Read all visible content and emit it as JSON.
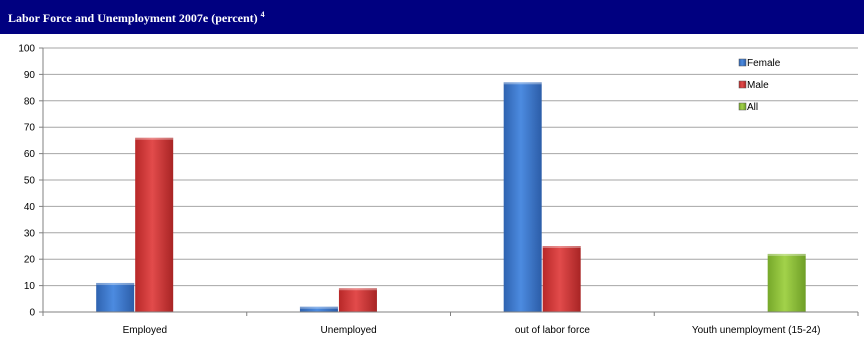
{
  "header": {
    "title": "Labor Force and Unemployment  2007e (percent)",
    "footnote": "4"
  },
  "colors": {
    "banner": "#000080",
    "female": "#3A7BD5",
    "male": "#D93A3A",
    "all": "#8DBE3A"
  },
  "chart_data": {
    "type": "bar",
    "title": "Labor Force and Unemployment  2007e (percent)",
    "xlabel": "",
    "ylabel": "",
    "ylim": [
      0,
      100
    ],
    "yticks": [
      0,
      10,
      20,
      30,
      40,
      50,
      60,
      70,
      80,
      90,
      100
    ],
    "grid": true,
    "legend_position": "top-right",
    "categories": [
      "Employed",
      "Unemployed",
      "out of labor force",
      "Youth unemployment (15-24)"
    ],
    "series": [
      {
        "name": "Female",
        "color": "#3A7BD5",
        "values": [
          11,
          2,
          87,
          null
        ]
      },
      {
        "name": "Male",
        "color": "#D93A3A",
        "values": [
          66,
          9,
          25,
          null
        ]
      },
      {
        "name": "All",
        "color": "#8DBE3A",
        "values": [
          null,
          null,
          null,
          22
        ]
      }
    ]
  }
}
